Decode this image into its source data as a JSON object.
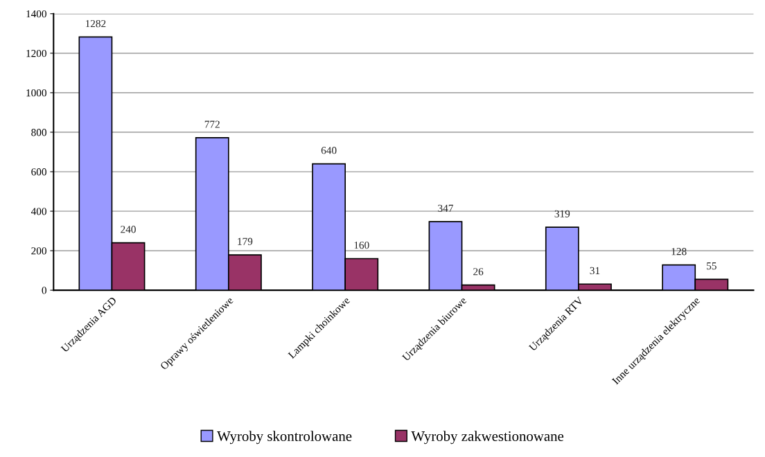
{
  "chart_data": {
    "type": "bar",
    "categories": [
      "Urządzenia AGD",
      "Oprawy oświetleniowe",
      "Lampki choinkowe",
      "Urządzenia biurowe",
      "Urządzenia RTV",
      "Inne urządzenia elektryczne"
    ],
    "series": [
      {
        "name": "Wyroby skontrolowane",
        "color": "#9999ff",
        "values": [
          1282,
          772,
          640,
          347,
          319,
          128
        ]
      },
      {
        "name": "Wyroby zakwestionowane",
        "color": "#993366",
        "values": [
          240,
          179,
          160,
          26,
          31,
          55
        ]
      }
    ],
    "ylim": [
      0,
      1400
    ],
    "yticks": [
      0,
      200,
      400,
      600,
      800,
      1000,
      1200,
      1400
    ],
    "grid": "y",
    "legend": "bottom",
    "data_labels": true
  }
}
